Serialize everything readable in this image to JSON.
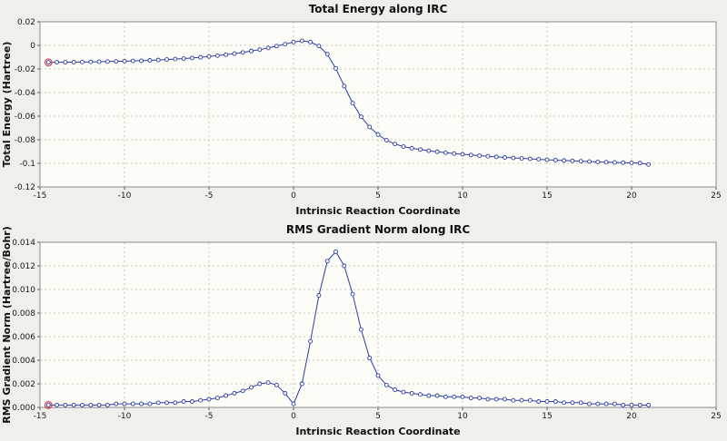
{
  "window": {
    "background_color": "#f0efec"
  },
  "chart_data": [
    {
      "type": "line",
      "title": "Total Energy along IRC",
      "xlabel": "Intrinsic Reaction Coordinate",
      "ylabel": "Total Energy (Hartree)",
      "xlim": [
        -15,
        25
      ],
      "ylim": [
        -0.12,
        0.02
      ],
      "grid": true,
      "legend": "none",
      "marker": "open-circle",
      "line_color": "#2d3ba6",
      "marker_fill": "#ffffff",
      "grid_color": "#c6c6b8",
      "frame_color": "#8a8a88",
      "tick_color": "#555555",
      "plot_bg": "#fdfdf8",
      "highlight_index": 0,
      "highlight_color": "#d9404d",
      "xtick_values": [
        -15,
        -10,
        -5,
        0,
        5,
        10,
        15,
        20,
        25
      ],
      "xtick_labels": [
        "-15",
        "-10",
        "-5",
        "0",
        "5",
        "10",
        "15",
        "20",
        "25"
      ],
      "ytick_values": [
        0.02,
        0,
        -0.02,
        -0.04,
        -0.06,
        -0.08,
        -0.1,
        -0.12
      ],
      "ytick_labels": [
        "0.02",
        "0",
        "-0.02",
        "-0.04",
        "-0.06",
        "-0.08",
        "-0.1",
        "-0.12"
      ],
      "x": [
        -14.5,
        -14,
        -13.5,
        -13,
        -12.5,
        -12,
        -11.5,
        -11,
        -10.5,
        -10,
        -9.5,
        -9,
        -8.5,
        -8,
        -7.5,
        -7,
        -6.5,
        -6,
        -5.5,
        -5,
        -4.5,
        -4,
        -3.5,
        -3,
        -2.5,
        -2,
        -1.5,
        -1,
        -0.5,
        0,
        0.5,
        1,
        1.5,
        2,
        2.5,
        3,
        3.5,
        4,
        4.5,
        5,
        5.5,
        6,
        6.5,
        7,
        7.5,
        8,
        8.5,
        9,
        9.5,
        10,
        10.5,
        11,
        11.5,
        12,
        12.5,
        13,
        13.5,
        14,
        14.5,
        15,
        15.5,
        16,
        16.5,
        17,
        17.5,
        18,
        18.5,
        19,
        19.5,
        20,
        20.5,
        21
      ],
      "y": [
        -0.0144,
        -0.0143,
        -0.0143,
        -0.0142,
        -0.0141,
        -0.014,
        -0.0139,
        -0.0137,
        -0.0136,
        -0.0134,
        -0.0132,
        -0.013,
        -0.0127,
        -0.0124,
        -0.012,
        -0.0116,
        -0.0112,
        -0.0107,
        -0.0101,
        -0.0094,
        -0.0087,
        -0.0079,
        -0.007,
        -0.006,
        -0.0048,
        -0.0036,
        -0.0022,
        -0.0006,
        0.001,
        0.0028,
        0.0038,
        0.0028,
        -0.0005,
        -0.0075,
        -0.0195,
        -0.0345,
        -0.049,
        -0.0605,
        -0.0692,
        -0.0757,
        -0.0804,
        -0.0836,
        -0.0858,
        -0.0872,
        -0.0883,
        -0.0893,
        -0.0902,
        -0.091,
        -0.0917,
        -0.0923,
        -0.0929,
        -0.0935,
        -0.094,
        -0.0945,
        -0.095,
        -0.0954,
        -0.0958,
        -0.0962,
        -0.0966,
        -0.097,
        -0.0973,
        -0.0976,
        -0.0979,
        -0.0982,
        -0.0985,
        -0.0988,
        -0.099,
        -0.0992,
        -0.0994,
        -0.0996,
        -0.0998,
        -0.101
      ]
    },
    {
      "type": "line",
      "title": "RMS Gradient Norm along IRC",
      "xlabel": "Intrinsic Reaction Coordinate",
      "ylabel": "RMS Gradient Norm (Hartree/Bohr)",
      "xlim": [
        -15,
        25
      ],
      "ylim": [
        0,
        0.014
      ],
      "grid": true,
      "legend": "none",
      "marker": "open-circle",
      "line_color": "#2d3ba6",
      "marker_fill": "#ffffff",
      "grid_color": "#c6c6b8",
      "frame_color": "#8a8a88",
      "tick_color": "#555555",
      "plot_bg": "#fdfdf8",
      "highlight_index": 0,
      "highlight_color": "#d9404d",
      "xtick_values": [
        -15,
        -10,
        -5,
        0,
        5,
        10,
        15,
        20,
        25
      ],
      "xtick_labels": [
        "-15",
        "-10",
        "-5",
        "0",
        "5",
        "10",
        "15",
        "20",
        "25"
      ],
      "ytick_values": [
        0.014,
        0.012,
        0.01,
        0.008,
        0.006,
        0.004,
        0.002,
        0
      ],
      "ytick_labels": [
        "0.014",
        "0.012",
        "0.010",
        "0.008",
        "0.006",
        "0.004",
        "0.002",
        "0.000"
      ],
      "x": [
        -14.5,
        -14,
        -13.5,
        -13,
        -12.5,
        -12,
        -11.5,
        -11,
        -10.5,
        -10,
        -9.5,
        -9,
        -8.5,
        -8,
        -7.5,
        -7,
        -6.5,
        -6,
        -5.5,
        -5,
        -4.5,
        -4,
        -3.5,
        -3,
        -2.5,
        -2,
        -1.5,
        -1,
        -0.5,
        0,
        0.5,
        1,
        1.5,
        2,
        2.5,
        3,
        3.5,
        4,
        4.5,
        5,
        5.5,
        6,
        6.5,
        7,
        7.5,
        8,
        8.5,
        9,
        9.5,
        10,
        10.5,
        11,
        11.5,
        12,
        12.5,
        13,
        13.5,
        14,
        14.5,
        15,
        15.5,
        16,
        16.5,
        17,
        17.5,
        18,
        18.5,
        19,
        19.5,
        20,
        20.5,
        21
      ],
      "y": [
        0.0002,
        0.0002,
        0.0002,
        0.0002,
        0.0002,
        0.0002,
        0.0002,
        0.0002,
        0.0003,
        0.0003,
        0.0003,
        0.0003,
        0.0003,
        0.0004,
        0.0004,
        0.0004,
        0.0005,
        0.0005,
        0.0006,
        0.0007,
        0.0008,
        0.001,
        0.0012,
        0.0014,
        0.0017,
        0.002,
        0.0021,
        0.0019,
        0.0012,
        0.0003,
        0.002,
        0.0056,
        0.0095,
        0.0124,
        0.0132,
        0.012,
        0.0096,
        0.0066,
        0.0042,
        0.0027,
        0.0019,
        0.0015,
        0.0013,
        0.0012,
        0.0011,
        0.001,
        0.001,
        0.0009,
        0.0009,
        0.0009,
        0.0008,
        0.0008,
        0.0007,
        0.0007,
        0.0007,
        0.0006,
        0.0006,
        0.0006,
        0.0005,
        0.0005,
        0.0005,
        0.0004,
        0.0004,
        0.0004,
        0.0003,
        0.0003,
        0.0003,
        0.0003,
        0.0002,
        0.0002,
        0.0002,
        0.0002
      ]
    }
  ]
}
